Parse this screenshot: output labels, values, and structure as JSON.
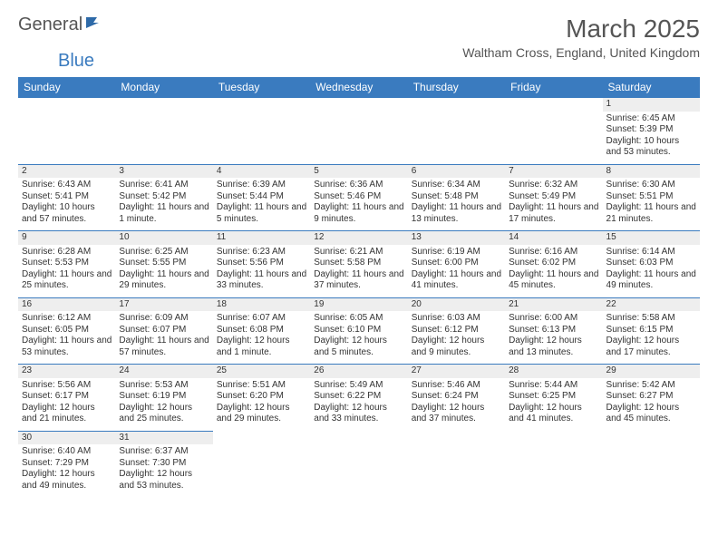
{
  "logo": {
    "part1": "General",
    "part2": "Blue"
  },
  "title": "March 2025",
  "location": "Waltham Cross, England, United Kingdom",
  "columns": [
    "Sunday",
    "Monday",
    "Tuesday",
    "Wednesday",
    "Thursday",
    "Friday",
    "Saturday"
  ],
  "header_bg": "#3a7bbf",
  "daynum_bg": "#eeeeee",
  "weeks": [
    [
      null,
      null,
      null,
      null,
      null,
      null,
      {
        "n": "1",
        "sr": "Sunrise: 6:45 AM",
        "ss": "Sunset: 5:39 PM",
        "dl": "Daylight: 10 hours and 53 minutes."
      }
    ],
    [
      {
        "n": "2",
        "sr": "Sunrise: 6:43 AM",
        "ss": "Sunset: 5:41 PM",
        "dl": "Daylight: 10 hours and 57 minutes."
      },
      {
        "n": "3",
        "sr": "Sunrise: 6:41 AM",
        "ss": "Sunset: 5:42 PM",
        "dl": "Daylight: 11 hours and 1 minute."
      },
      {
        "n": "4",
        "sr": "Sunrise: 6:39 AM",
        "ss": "Sunset: 5:44 PM",
        "dl": "Daylight: 11 hours and 5 minutes."
      },
      {
        "n": "5",
        "sr": "Sunrise: 6:36 AM",
        "ss": "Sunset: 5:46 PM",
        "dl": "Daylight: 11 hours and 9 minutes."
      },
      {
        "n": "6",
        "sr": "Sunrise: 6:34 AM",
        "ss": "Sunset: 5:48 PM",
        "dl": "Daylight: 11 hours and 13 minutes."
      },
      {
        "n": "7",
        "sr": "Sunrise: 6:32 AM",
        "ss": "Sunset: 5:49 PM",
        "dl": "Daylight: 11 hours and 17 minutes."
      },
      {
        "n": "8",
        "sr": "Sunrise: 6:30 AM",
        "ss": "Sunset: 5:51 PM",
        "dl": "Daylight: 11 hours and 21 minutes."
      }
    ],
    [
      {
        "n": "9",
        "sr": "Sunrise: 6:28 AM",
        "ss": "Sunset: 5:53 PM",
        "dl": "Daylight: 11 hours and 25 minutes."
      },
      {
        "n": "10",
        "sr": "Sunrise: 6:25 AM",
        "ss": "Sunset: 5:55 PM",
        "dl": "Daylight: 11 hours and 29 minutes."
      },
      {
        "n": "11",
        "sr": "Sunrise: 6:23 AM",
        "ss": "Sunset: 5:56 PM",
        "dl": "Daylight: 11 hours and 33 minutes."
      },
      {
        "n": "12",
        "sr": "Sunrise: 6:21 AM",
        "ss": "Sunset: 5:58 PM",
        "dl": "Daylight: 11 hours and 37 minutes."
      },
      {
        "n": "13",
        "sr": "Sunrise: 6:19 AM",
        "ss": "Sunset: 6:00 PM",
        "dl": "Daylight: 11 hours and 41 minutes."
      },
      {
        "n": "14",
        "sr": "Sunrise: 6:16 AM",
        "ss": "Sunset: 6:02 PM",
        "dl": "Daylight: 11 hours and 45 minutes."
      },
      {
        "n": "15",
        "sr": "Sunrise: 6:14 AM",
        "ss": "Sunset: 6:03 PM",
        "dl": "Daylight: 11 hours and 49 minutes."
      }
    ],
    [
      {
        "n": "16",
        "sr": "Sunrise: 6:12 AM",
        "ss": "Sunset: 6:05 PM",
        "dl": "Daylight: 11 hours and 53 minutes."
      },
      {
        "n": "17",
        "sr": "Sunrise: 6:09 AM",
        "ss": "Sunset: 6:07 PM",
        "dl": "Daylight: 11 hours and 57 minutes."
      },
      {
        "n": "18",
        "sr": "Sunrise: 6:07 AM",
        "ss": "Sunset: 6:08 PM",
        "dl": "Daylight: 12 hours and 1 minute."
      },
      {
        "n": "19",
        "sr": "Sunrise: 6:05 AM",
        "ss": "Sunset: 6:10 PM",
        "dl": "Daylight: 12 hours and 5 minutes."
      },
      {
        "n": "20",
        "sr": "Sunrise: 6:03 AM",
        "ss": "Sunset: 6:12 PM",
        "dl": "Daylight: 12 hours and 9 minutes."
      },
      {
        "n": "21",
        "sr": "Sunrise: 6:00 AM",
        "ss": "Sunset: 6:13 PM",
        "dl": "Daylight: 12 hours and 13 minutes."
      },
      {
        "n": "22",
        "sr": "Sunrise: 5:58 AM",
        "ss": "Sunset: 6:15 PM",
        "dl": "Daylight: 12 hours and 17 minutes."
      }
    ],
    [
      {
        "n": "23",
        "sr": "Sunrise: 5:56 AM",
        "ss": "Sunset: 6:17 PM",
        "dl": "Daylight: 12 hours and 21 minutes."
      },
      {
        "n": "24",
        "sr": "Sunrise: 5:53 AM",
        "ss": "Sunset: 6:19 PM",
        "dl": "Daylight: 12 hours and 25 minutes."
      },
      {
        "n": "25",
        "sr": "Sunrise: 5:51 AM",
        "ss": "Sunset: 6:20 PM",
        "dl": "Daylight: 12 hours and 29 minutes."
      },
      {
        "n": "26",
        "sr": "Sunrise: 5:49 AM",
        "ss": "Sunset: 6:22 PM",
        "dl": "Daylight: 12 hours and 33 minutes."
      },
      {
        "n": "27",
        "sr": "Sunrise: 5:46 AM",
        "ss": "Sunset: 6:24 PM",
        "dl": "Daylight: 12 hours and 37 minutes."
      },
      {
        "n": "28",
        "sr": "Sunrise: 5:44 AM",
        "ss": "Sunset: 6:25 PM",
        "dl": "Daylight: 12 hours and 41 minutes."
      },
      {
        "n": "29",
        "sr": "Sunrise: 5:42 AM",
        "ss": "Sunset: 6:27 PM",
        "dl": "Daylight: 12 hours and 45 minutes."
      }
    ],
    [
      {
        "n": "30",
        "sr": "Sunrise: 6:40 AM",
        "ss": "Sunset: 7:29 PM",
        "dl": "Daylight: 12 hours and 49 minutes."
      },
      {
        "n": "31",
        "sr": "Sunrise: 6:37 AM",
        "ss": "Sunset: 7:30 PM",
        "dl": "Daylight: 12 hours and 53 minutes."
      },
      null,
      null,
      null,
      null,
      null
    ]
  ]
}
